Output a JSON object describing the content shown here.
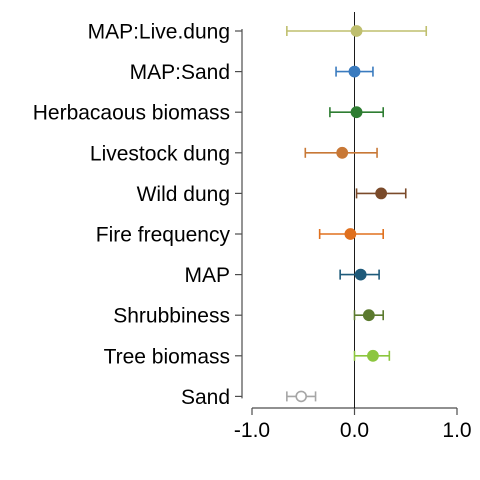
{
  "chart_data": {
    "type": "forest",
    "title": "",
    "xlabel": "",
    "ylabel": "",
    "xlim": [
      -1.0,
      1.0
    ],
    "x_ticks": [
      -1.0,
      0.0,
      1.0
    ],
    "x_tick_labels": [
      "-1.0",
      "0.0",
      "1.0"
    ],
    "reference_line": 0.0,
    "grid": false,
    "legend": "none",
    "points": [
      {
        "label": "MAP:Live.dung",
        "estimate": 0.02,
        "lower": -0.66,
        "upper": 0.7,
        "color": "#bfbf6e",
        "filled": true
      },
      {
        "label": "MAP:Sand",
        "estimate": 0.0,
        "lower": -0.18,
        "upper": 0.18,
        "color": "#3a7bbf",
        "filled": true
      },
      {
        "label": "Herbacaous biomass",
        "estimate": 0.02,
        "lower": -0.24,
        "upper": 0.28,
        "color": "#2e7d32",
        "filled": true
      },
      {
        "label": "Livestock dung",
        "estimate": -0.12,
        "lower": -0.48,
        "upper": 0.22,
        "color": "#c87836",
        "filled": true
      },
      {
        "label": "Wild dung",
        "estimate": 0.26,
        "lower": 0.02,
        "upper": 0.5,
        "color": "#7a4a2a",
        "filled": true
      },
      {
        "label": "Fire frequency",
        "estimate": -0.04,
        "lower": -0.34,
        "upper": 0.28,
        "color": "#e0701e",
        "filled": true
      },
      {
        "label": "MAP",
        "estimate": 0.06,
        "lower": -0.14,
        "upper": 0.24,
        "color": "#1e5a7a",
        "filled": true
      },
      {
        "label": "Shrubbiness",
        "estimate": 0.14,
        "lower": 0.0,
        "upper": 0.28,
        "color": "#5b7a2e",
        "filled": true
      },
      {
        "label": "Tree biomass",
        "estimate": 0.18,
        "lower": 0.0,
        "upper": 0.34,
        "color": "#8cc63f",
        "filled": true
      },
      {
        "label": "Sand",
        "estimate": -0.52,
        "lower": -0.66,
        "upper": -0.38,
        "color": "#a6a6a6",
        "filled": false
      }
    ]
  }
}
